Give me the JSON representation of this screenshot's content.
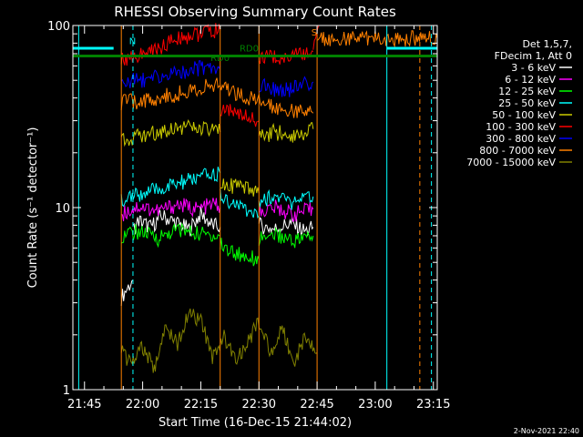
{
  "chart_data": {
    "type": "line",
    "title": "RHESSI Observing Summary Count Rates",
    "xlabel": "Start Time (16-Dec-15 21:44:02)",
    "ylabel": "Count Rate (s⁻¹ detector⁻¹)",
    "yscale": "log",
    "ylim": [
      1,
      100
    ],
    "xlim_minutes": [
      -2,
      92
    ],
    "x_tick_labels": [
      "21:45",
      "22:00",
      "22:15",
      "22:30",
      "22:45",
      "23:00",
      "23:15"
    ],
    "x_tick_minutes": [
      1,
      16,
      31,
      46,
      61,
      76,
      91
    ],
    "y_tick_labels": [
      "1",
      "10",
      "100"
    ],
    "y_tick_values": [
      1,
      10,
      100
    ],
    "legend_title": [
      "Det 1,5,7,",
      "FDecim 1, Att 0"
    ],
    "legend_position": "right",
    "series": [
      {
        "name": "3 - 6 keV",
        "color": "#ffffff",
        "segments": [
          {
            "x": [
              10.5,
              12,
              13.5
            ],
            "y": [
              3.2,
              3.6,
              4.0
            ]
          },
          {
            "x": [
              13.5,
              15,
              18,
              21,
              25,
              28,
              31,
              34,
              36
            ],
            "y": [
              7.5,
              8.5,
              7.8,
              9.0,
              8.2,
              7.6,
              9.2,
              8.0,
              7.8
            ]
          },
          {
            "x": [
              46,
              50,
              54,
              58,
              60
            ],
            "y": [
              8.0,
              7.6,
              8.2,
              7.4,
              7.8
            ]
          }
        ]
      },
      {
        "name": "6 - 12 keV",
        "color": "#ff00ff",
        "segments": [
          {
            "x": [
              10.5,
              15,
              20,
              25,
              30,
              35,
              36
            ],
            "y": [
              9.2,
              10.2,
              9.6,
              10.4,
              9.8,
              10.5,
              10.0
            ]
          },
          {
            "x": [
              46,
              50,
              55,
              60
            ],
            "y": [
              9.5,
              10.0,
              9.2,
              9.8
            ]
          }
        ]
      },
      {
        "name": "12 - 25 keV",
        "color": "#00ff00",
        "segments": [
          {
            "x": [
              10.5,
              15,
              20,
              25,
              30,
              36
            ],
            "y": [
              7.0,
              7.4,
              6.8,
              7.6,
              7.2,
              7.0
            ]
          },
          {
            "x": [
              36,
              40,
              46
            ],
            "y": [
              6.2,
              5.6,
              5.2
            ]
          },
          {
            "x": [
              46,
              50,
              55,
              60
            ],
            "y": [
              6.8,
              7.2,
              6.6,
              7.0
            ]
          }
        ]
      },
      {
        "name": "25 - 50 keV",
        "color": "#00ffff",
        "segments": [
          {
            "x": [
              10.5,
              15,
              20,
              25,
              30,
              36
            ],
            "y": [
              11.0,
              11.8,
              12.5,
              13.5,
              14.5,
              15.5
            ]
          },
          {
            "x": [
              36,
              40,
              46
            ],
            "y": [
              11.5,
              10.5,
              9.0
            ]
          },
          {
            "x": [
              46,
              50,
              55,
              60
            ],
            "y": [
              11.0,
              11.5,
              10.5,
              11.5
            ]
          }
        ]
      },
      {
        "name": "50 - 100 keV",
        "color": "#cccc00",
        "segments": [
          {
            "x": [
              10.5,
              15,
              20,
              25,
              30,
              36
            ],
            "y": [
              24.0,
              24.5,
              26.0,
              28.0,
              27.0,
              26.0
            ]
          },
          {
            "x": [
              36,
              40,
              46
            ],
            "y": [
              14.0,
              13.0,
              12.0
            ]
          },
          {
            "x": [
              46,
              50,
              55,
              60
            ],
            "y": [
              24.0,
              26.0,
              25.0,
              27.0
            ]
          }
        ]
      },
      {
        "name": "100 - 300 keV",
        "color": "#ff0000",
        "segments": [
          {
            "x": [
              10.5,
              15,
              20,
              25,
              30,
              36
            ],
            "y": [
              66.0,
              68.0,
              75.0,
              85.0,
              90.0,
              94.0
            ]
          },
          {
            "x": [
              36,
              40,
              46
            ],
            "y": [
              35.0,
              33.0,
              30.0
            ]
          },
          {
            "x": [
              46,
              50,
              55,
              60
            ],
            "y": [
              66.0,
              67.0,
              68.0,
              72.0
            ]
          },
          {
            "x": [
              60,
              61.5
            ],
            "y": [
              80.0,
              100.0
            ]
          }
        ]
      },
      {
        "name": "300 - 800 keV",
        "color": "#0000ff",
        "segments": [
          {
            "x": [
              10.5,
              15,
              20,
              25,
              30,
              36
            ],
            "y": [
              49.0,
              50.0,
              52.0,
              55.0,
              58.0,
              60.0
            ]
          },
          {
            "x": [
              46,
              50,
              55,
              60
            ],
            "y": [
              47.0,
              44.0,
              45.0,
              49.0
            ]
          }
        ]
      },
      {
        "name": "800 - 7000 keV",
        "color": "#ff8000",
        "segments": [
          {
            "x": [
              10.5,
              15,
              20,
              25,
              30,
              36,
              40,
              46,
              50,
              55,
              60
            ],
            "y": [
              38.0,
              38.5,
              40.0,
              42.0,
              45.0,
              47.0,
              43.0,
              38.0,
              36.0,
              34.0,
              33.0
            ]
          },
          {
            "x": [
              61,
              66,
              71,
              76,
              81,
              86,
              92
            ],
            "y": [
              85.0,
              85.0,
              85.0,
              85.0,
              85.0,
              85.0,
              85.0
            ]
          }
        ]
      },
      {
        "name": "7000 - 15000 keV",
        "color": "#808000",
        "segments": [
          {
            "x": [
              10.5,
              13,
              16,
              19,
              22,
              25,
              28,
              31,
              34,
              37,
              40,
              43,
              46,
              49,
              52,
              55,
              58,
              61
            ],
            "y": [
              1.6,
              1.4,
              1.7,
              1.3,
              2.2,
              1.8,
              2.6,
              2.4,
              1.5,
              2.0,
              1.4,
              1.8,
              2.4,
              1.6,
              2.2,
              1.4,
              2.0,
              1.6
            ]
          }
        ]
      }
    ],
    "status_bars": [
      {
        "label": "",
        "color": "#00ffff",
        "y": 75.0,
        "segments": [
          [
            -2,
            8.5
          ],
          [
            79,
            92
          ]
        ]
      },
      {
        "label": "",
        "color": "#008000",
        "y": 68.0,
        "segments": [
          [
            -2,
            92
          ]
        ]
      }
    ],
    "annotations": [
      {
        "text": "N",
        "color": "#00ffff",
        "x": 12.5,
        "y": 79.0
      },
      {
        "text": "RD0",
        "color": "#008000",
        "x": 41.0,
        "y": 72.0
      },
      {
        "text": "RD0",
        "color": "#008000",
        "x": 33.5,
        "y": 64.0
      },
      {
        "text": "S",
        "color": "#ff8000",
        "x": 59.5,
        "y": 88.0
      }
    ],
    "vlines": [
      {
        "x": -0.5,
        "color": "#00ffff",
        "dashed": false
      },
      {
        "x": 13.5,
        "color": "#00ffff",
        "dashed": true
      },
      {
        "x": 79.0,
        "color": "#00ffff",
        "dashed": false
      },
      {
        "x": 90.5,
        "color": "#00ffff",
        "dashed": true
      },
      {
        "x": 87.5,
        "color": "#ff8000",
        "dashed": true
      },
      {
        "x": 10.5,
        "color": "#ff8000",
        "dashed": false
      },
      {
        "x": 36.0,
        "color": "#ff8000",
        "dashed": false
      },
      {
        "x": 46.0,
        "color": "#ff8000",
        "dashed": false
      },
      {
        "x": 61.0,
        "color": "#ff8000",
        "dashed": false
      }
    ],
    "footer": "2-Nov-2021 22:40"
  }
}
